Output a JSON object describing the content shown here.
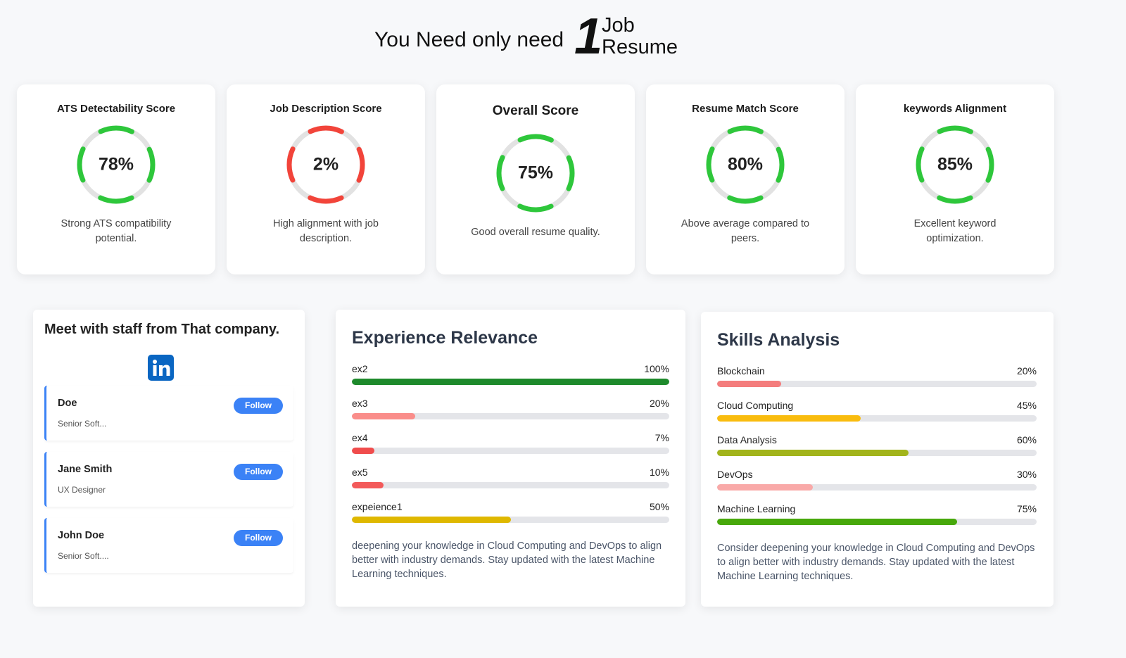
{
  "header": {
    "title": "You Need only need",
    "big_number": "1",
    "tagline": [
      "Job",
      "Resume"
    ]
  },
  "scores": [
    {
      "title": "ATS Detectability Score",
      "value": 78,
      "label": "78%",
      "description": "Strong ATS compatibility potential.",
      "color": "#2ec73b"
    },
    {
      "title": "Job Description Score",
      "value": 2,
      "label": "2%",
      "description": "High alignment with job description.",
      "color": "#f2443a"
    },
    {
      "title": "Overall Score",
      "value": 75,
      "label": "75%",
      "description": "Good overall resume quality.",
      "color": "#2ec73b",
      "featured": true
    },
    {
      "title": "Resume Match Score",
      "value": 80,
      "label": "80%",
      "description": "Above average compared to peers.",
      "color": "#2ec73b"
    },
    {
      "title": "keywords Alignment",
      "value": 85,
      "label": "85%",
      "description": "Excellent keyword optimization.",
      "color": "#2ec73b"
    }
  ],
  "staff": {
    "title": "Meet with staff from That company.",
    "people": [
      {
        "name": "Doe",
        "role": "Senior Soft...",
        "action": "Follow"
      },
      {
        "name": "Jane Smith",
        "role": "UX Designer",
        "action": "Follow"
      },
      {
        "name": "John Doe",
        "role": "Senior Soft....",
        "action": "Follow"
      }
    ]
  },
  "experience": {
    "title": "Experience Relevance",
    "items": [
      {
        "name": "ex2",
        "value": 100,
        "label": "100%",
        "color": "#1e8a2c"
      },
      {
        "name": "ex3",
        "value": 20,
        "label": "20%",
        "color": "#fa8d8a"
      },
      {
        "name": "ex4",
        "value": 7,
        "label": "7%",
        "color": "#f04c4c"
      },
      {
        "name": "ex5",
        "value": 10,
        "label": "10%",
        "color": "#f35a5a"
      },
      {
        "name": "expeience1",
        "value": 50,
        "label": "50%",
        "color": "#dfb800"
      }
    ],
    "note": "deepening your knowledge in Cloud Computing and DevOps to align better with industry demands. Stay updated with the latest Machine Learning techniques."
  },
  "skills": {
    "title": "Skills Analysis",
    "items": [
      {
        "name": "Blockchain",
        "value": 20,
        "label": "20%",
        "color": "#f47c7c"
      },
      {
        "name": "Cloud Computing",
        "value": 45,
        "label": "45%",
        "color": "#f9bc0e"
      },
      {
        "name": "Data Analysis",
        "value": 60,
        "label": "60%",
        "color": "#a2b41b"
      },
      {
        "name": "DevOps",
        "value": 30,
        "label": "30%",
        "color": "#f9a9a8"
      },
      {
        "name": "Machine Learning",
        "value": 75,
        "label": "75%",
        "color": "#47a80b"
      }
    ],
    "note": "Consider deepening your knowledge in Cloud Computing and DevOps to align better with industry demands. Stay updated with the latest Machine Learning techniques."
  }
}
